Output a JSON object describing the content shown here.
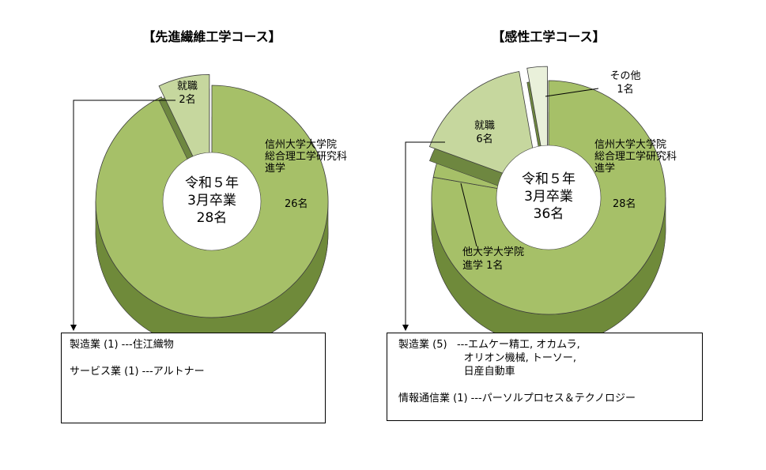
{
  "colors": {
    "main_fill": "#a6c068",
    "main_side": "#6f8a3a",
    "jobs_fill": "#c6d79e",
    "jobs_side": "#6e8740",
    "other_fill": "#e9f0da",
    "stroke": "#3c3c3c"
  },
  "chart_data": [
    {
      "type": "pie",
      "style": "3d-donut-exploded",
      "title": "【先進繊維工学コース】",
      "center_label": [
        "令和５年",
        "3月卒業",
        "28名"
      ],
      "slices": [
        {
          "key": "grad",
          "label_lines": [
            "信州大学大学院",
            "総合理工学研究科",
            "進学"
          ],
          "value_label": "26名",
          "value": 26,
          "exploded": false
        },
        {
          "key": "jobs",
          "label_lines": [
            "就職",
            "2名"
          ],
          "value_label": "",
          "value": 2,
          "exploded": true
        }
      ],
      "detail_box": {
        "lines": [
          "製造業 (1) ---住江織物",
          "",
          "サービス業 (1) ---アルトナー"
        ]
      }
    },
    {
      "type": "pie",
      "style": "3d-donut-exploded",
      "title": "【感性工学コース】",
      "center_label": [
        "令和５年",
        "3月卒業",
        "36名"
      ],
      "slices": [
        {
          "key": "grad",
          "label_lines": [
            "信州大学大学院",
            "総合理工学研究科",
            "進学"
          ],
          "value_label": "28名",
          "value": 28,
          "exploded": false
        },
        {
          "key": "other_grad",
          "label_lines": [
            "他大学大学院",
            "進学  1名"
          ],
          "value_label": "",
          "value": 1,
          "exploded": false
        },
        {
          "key": "jobs",
          "label_lines": [
            "就職",
            "6名"
          ],
          "value_label": "",
          "value": 6,
          "exploded": true
        },
        {
          "key": "other",
          "label_lines": [
            "その他",
            "1名"
          ],
          "value_label": "",
          "value": 1,
          "exploded": true
        }
      ],
      "detail_box": {
        "lines": [
          "製造業 (5)   ---エムケー精工, オカムラ,",
          "                    オリオン機械, トーソー,",
          "                    日産自動車",
          "",
          "情報通信業 (1) ---パーソルプロセス＆テクノロジー"
        ]
      }
    }
  ]
}
